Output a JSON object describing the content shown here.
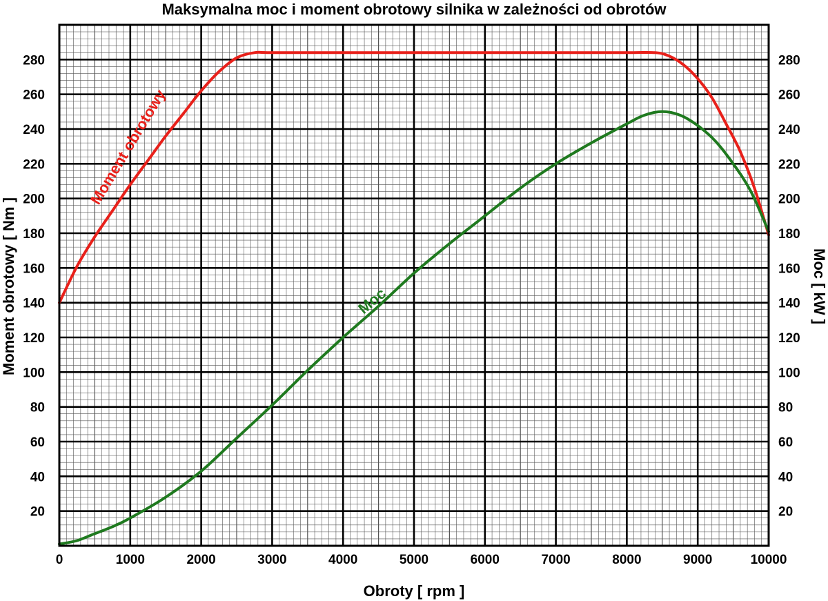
{
  "chart_data": {
    "type": "line",
    "title": "Maksymalna moc i moment obrotowy silnika w zależności od obrotów",
    "xlabel": "Obroty [ rpm ]",
    "ylabel_left": "Moment obrotowy [ Nm ]",
    "ylabel_right": "Moc [ kW ]",
    "xlim": [
      0,
      10000
    ],
    "ylim": [
      0,
      300
    ],
    "x_ticks": [
      "0",
      "1000",
      "2000",
      "3000",
      "4000",
      "5000",
      "6000",
      "7000",
      "8000",
      "9000",
      "10000"
    ],
    "y_ticks": [
      "20",
      "40",
      "60",
      "80",
      "100",
      "120",
      "140",
      "160",
      "180",
      "200",
      "220",
      "240",
      "260",
      "280"
    ],
    "grid": true,
    "series": [
      {
        "name": "Moment obrotowy",
        "color": "#e8201a",
        "x": [
          0,
          250,
          500,
          750,
          1000,
          1250,
          1500,
          1750,
          2000,
          2250,
          2500,
          2750,
          3000,
          4000,
          5000,
          6000,
          7000,
          8000,
          8400,
          8600,
          8800,
          9000,
          9200,
          9400,
          9600,
          9800,
          10000
        ],
        "y": [
          140,
          161,
          178,
          193,
          208,
          222,
          236,
          249,
          262,
          273,
          281,
          284,
          284,
          284,
          284,
          284,
          284,
          284,
          284,
          282,
          277,
          269,
          258,
          243,
          227,
          206,
          179
        ]
      },
      {
        "name": "Moc",
        "color": "#1f7a1f",
        "x": [
          0,
          250,
          500,
          750,
          1000,
          1500,
          2000,
          2500,
          3000,
          3500,
          4000,
          4500,
          5000,
          5500,
          6000,
          6500,
          7000,
          7500,
          8000,
          8250,
          8500,
          8750,
          9000,
          9250,
          9500,
          9750,
          10000
        ],
        "y": [
          1,
          3,
          7,
          11,
          16,
          28,
          43,
          62,
          81,
          101,
          120,
          138,
          157,
          174,
          190,
          206,
          220,
          232,
          243,
          248,
          250,
          248,
          242,
          233,
          220,
          204,
          181
        ]
      }
    ]
  }
}
